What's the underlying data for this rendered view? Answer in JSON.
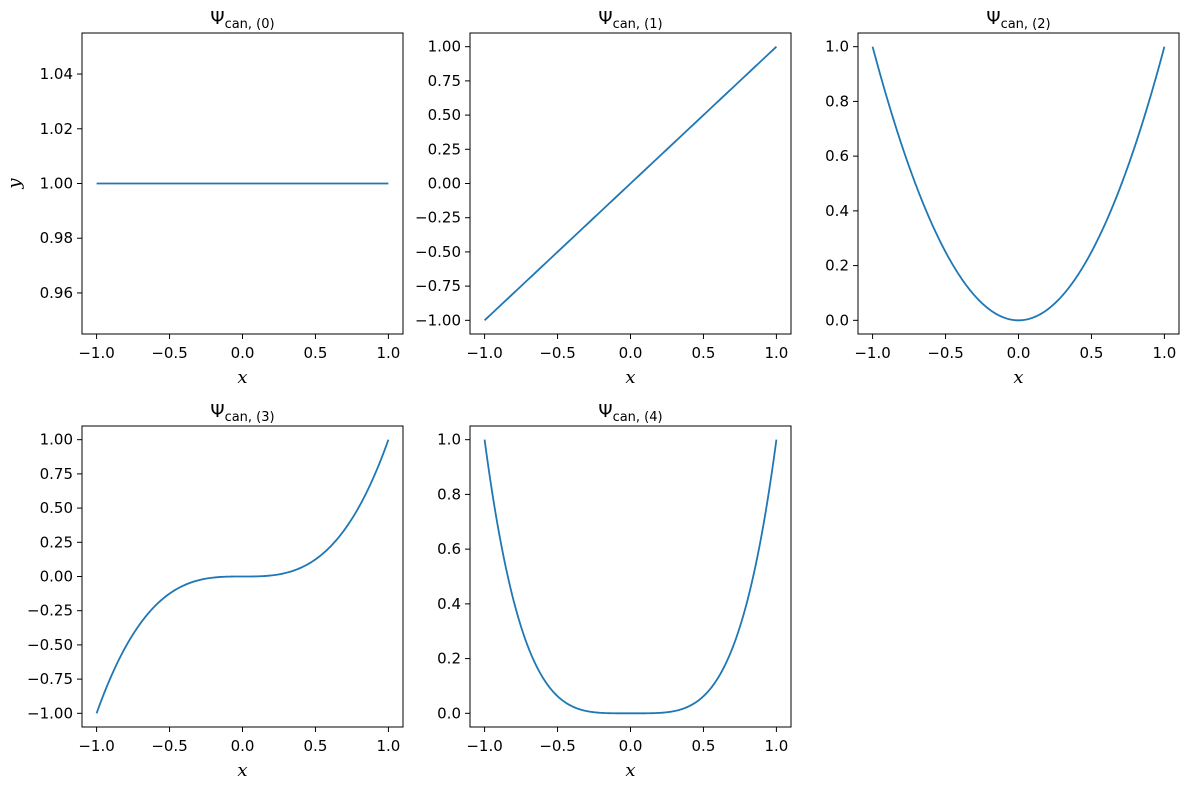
{
  "chart_data": [
    {
      "type": "line",
      "title_base": "Ψ",
      "title_sub": "can, (0)",
      "xlabel": "x",
      "ylabel": "y",
      "xlim": [
        -1.1,
        1.1
      ],
      "ylim": [
        0.945,
        1.055
      ],
      "xticks": [
        -1.0,
        -0.5,
        0.0,
        0.5,
        1.0
      ],
      "xtick_labels": [
        "−1.0",
        "−0.5",
        "0.0",
        "0.5",
        "1.0"
      ],
      "yticks": [
        0.96,
        0.98,
        1.0,
        1.02,
        1.04
      ],
      "ytick_labels": [
        "0.96",
        "0.98",
        "1.00",
        "1.02",
        "1.04"
      ],
      "series": [
        {
          "x_range": [
            -1,
            1
          ],
          "power": 0,
          "color": "#1f77b4"
        }
      ]
    },
    {
      "type": "line",
      "title_base": "Ψ",
      "title_sub": "can, (1)",
      "xlabel": "x",
      "ylabel": "",
      "xlim": [
        -1.1,
        1.1
      ],
      "ylim": [
        -1.1,
        1.1
      ],
      "xticks": [
        -1.0,
        -0.5,
        0.0,
        0.5,
        1.0
      ],
      "xtick_labels": [
        "−1.0",
        "−0.5",
        "0.0",
        "0.5",
        "1.0"
      ],
      "yticks": [
        -1.0,
        -0.75,
        -0.5,
        -0.25,
        0.0,
        0.25,
        0.5,
        0.75,
        1.0
      ],
      "ytick_labels": [
        "−1.00",
        "−0.75",
        "−0.50",
        "−0.25",
        "0.00",
        "0.25",
        "0.50",
        "0.75",
        "1.00"
      ],
      "series": [
        {
          "x_range": [
            -1,
            1
          ],
          "power": 1,
          "color": "#1f77b4"
        }
      ]
    },
    {
      "type": "line",
      "title_base": "Ψ",
      "title_sub": "can, (2)",
      "xlabel": "x",
      "ylabel": "",
      "xlim": [
        -1.1,
        1.1
      ],
      "ylim": [
        -0.05,
        1.05
      ],
      "xticks": [
        -1.0,
        -0.5,
        0.0,
        0.5,
        1.0
      ],
      "xtick_labels": [
        "−1.0",
        "−0.5",
        "0.0",
        "0.5",
        "1.0"
      ],
      "yticks": [
        0.0,
        0.2,
        0.4,
        0.6,
        0.8,
        1.0
      ],
      "ytick_labels": [
        "0.0",
        "0.2",
        "0.4",
        "0.6",
        "0.8",
        "1.0"
      ],
      "series": [
        {
          "x_range": [
            -1,
            1
          ],
          "power": 2,
          "color": "#1f77b4"
        }
      ]
    },
    {
      "type": "line",
      "title_base": "Ψ",
      "title_sub": "can, (3)",
      "xlabel": "x",
      "ylabel": "",
      "xlim": [
        -1.1,
        1.1
      ],
      "ylim": [
        -1.1,
        1.1
      ],
      "xticks": [
        -1.0,
        -0.5,
        0.0,
        0.5,
        1.0
      ],
      "xtick_labels": [
        "−1.0",
        "−0.5",
        "0.0",
        "0.5",
        "1.0"
      ],
      "yticks": [
        -1.0,
        -0.75,
        -0.5,
        -0.25,
        0.0,
        0.25,
        0.5,
        0.75,
        1.0
      ],
      "ytick_labels": [
        "−1.00",
        "−0.75",
        "−0.50",
        "−0.25",
        "0.00",
        "0.25",
        "0.50",
        "0.75",
        "1.00"
      ],
      "series": [
        {
          "x_range": [
            -1,
            1
          ],
          "power": 3,
          "color": "#1f77b4"
        }
      ]
    },
    {
      "type": "line",
      "title_base": "Ψ",
      "title_sub": "can, (4)",
      "xlabel": "x",
      "ylabel": "",
      "xlim": [
        -1.1,
        1.1
      ],
      "ylim": [
        -0.05,
        1.05
      ],
      "xticks": [
        -1.0,
        -0.5,
        0.0,
        0.5,
        1.0
      ],
      "xtick_labels": [
        "−1.0",
        "−0.5",
        "0.0",
        "0.5",
        "1.0"
      ],
      "yticks": [
        0.0,
        0.2,
        0.4,
        0.6,
        0.8,
        1.0
      ],
      "ytick_labels": [
        "0.0",
        "0.2",
        "0.4",
        "0.6",
        "0.8",
        "1.0"
      ],
      "series": [
        {
          "x_range": [
            -1,
            1
          ],
          "power": 4,
          "color": "#1f77b4"
        }
      ]
    }
  ]
}
